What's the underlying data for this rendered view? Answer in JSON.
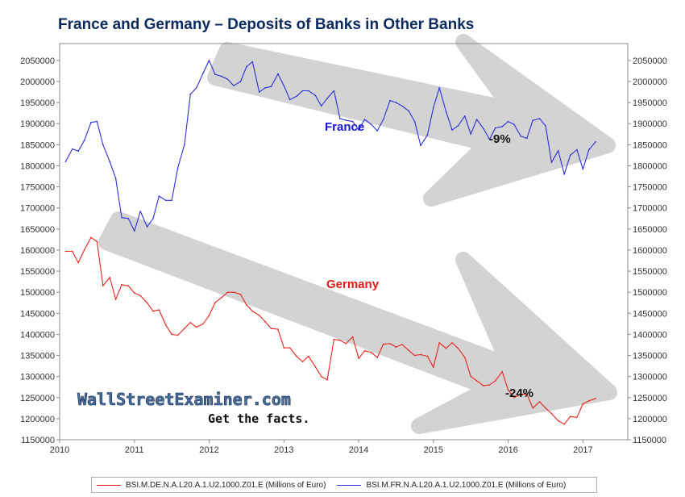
{
  "title": "France and Germany – Deposits of Banks in Other Banks",
  "chart_data": {
    "type": "line",
    "x_ticks": [
      "2010",
      "2011",
      "2012",
      "2013",
      "2014",
      "2015",
      "2016",
      "2017"
    ],
    "y_ticks": [
      1150000,
      1200000,
      1250000,
      1300000,
      1350000,
      1400000,
      1450000,
      1500000,
      1550000,
      1600000,
      1650000,
      1700000,
      1750000,
      1800000,
      1850000,
      1900000,
      1950000,
      2000000,
      2050000
    ],
    "xlim": [
      2010.0,
      2017.6
    ],
    "ylim": [
      1150000,
      2090000
    ],
    "grid": false,
    "legend_position": "bottom",
    "series": [
      {
        "name": "BSI.M.DE.N.A.L20.A.1.U2.1000.Z01.E (Millions of Euro)",
        "color": "#e8221b",
        "x": [
          2010.08,
          2010.17,
          2010.25,
          2010.33,
          2010.42,
          2010.5,
          2010.58,
          2010.67,
          2010.75,
          2010.83,
          2010.92,
          2011.0,
          2011.08,
          2011.17,
          2011.25,
          2011.33,
          2011.42,
          2011.5,
          2011.58,
          2011.67,
          2011.75,
          2011.83,
          2011.92,
          2012.0,
          2012.08,
          2012.17,
          2012.25,
          2012.33,
          2012.42,
          2012.5,
          2012.58,
          2012.67,
          2012.75,
          2012.83,
          2012.92,
          2013.0,
          2013.08,
          2013.17,
          2013.25,
          2013.33,
          2013.42,
          2013.5,
          2013.58,
          2013.67,
          2013.75,
          2013.83,
          2013.92,
          2014.0,
          2014.08,
          2014.17,
          2014.25,
          2014.33,
          2014.42,
          2014.5,
          2014.58,
          2014.67,
          2014.75,
          2014.83,
          2014.92,
          2015.0,
          2015.08,
          2015.17,
          2015.25,
          2015.33,
          2015.42,
          2015.5,
          2015.58,
          2015.67,
          2015.75,
          2015.83,
          2015.92,
          2016.0,
          2016.08,
          2016.17,
          2016.25,
          2016.33,
          2016.42,
          2016.5,
          2016.58,
          2016.67,
          2016.75,
          2016.83,
          2016.92,
          2017.0,
          2017.08,
          2017.17
        ],
        "y": [
          1597000,
          1597000,
          1570000,
          1600000,
          1630000,
          1620000,
          1515000,
          1535000,
          1483000,
          1518000,
          1515000,
          1498000,
          1492000,
          1475000,
          1455000,
          1458000,
          1422000,
          1400000,
          1398000,
          1414000,
          1428000,
          1417000,
          1425000,
          1445000,
          1475000,
          1488000,
          1500000,
          1500000,
          1495000,
          1470000,
          1455000,
          1445000,
          1430000,
          1414000,
          1412000,
          1368000,
          1368000,
          1348000,
          1335000,
          1348000,
          1323000,
          1300000,
          1292000,
          1388000,
          1386000,
          1378000,
          1394000,
          1343000,
          1361000,
          1357000,
          1345000,
          1377000,
          1378000,
          1370000,
          1376000,
          1362000,
          1350000,
          1352000,
          1348000,
          1322000,
          1380000,
          1367000,
          1380000,
          1367000,
          1345000,
          1300000,
          1290000,
          1278000,
          1280000,
          1290000,
          1312000,
          1268000,
          1250000,
          1258000,
          1258000,
          1225000,
          1240000,
          1225000,
          1212000,
          1195000,
          1187000,
          1205000,
          1203000,
          1235000,
          1242000,
          1248000
        ]
      },
      {
        "name": "BSI.M.FR.N.A.L20.A.1.U2.1000.Z01.E (Millions of Euro)",
        "color": "#2d2ddc",
        "x": [
          2010.08,
          2010.17,
          2010.25,
          2010.33,
          2010.42,
          2010.5,
          2010.58,
          2010.67,
          2010.75,
          2010.83,
          2010.92,
          2011.0,
          2011.08,
          2011.17,
          2011.25,
          2011.33,
          2011.42,
          2011.5,
          2011.58,
          2011.67,
          2011.75,
          2011.83,
          2011.92,
          2012.0,
          2012.08,
          2012.17,
          2012.25,
          2012.33,
          2012.42,
          2012.5,
          2012.58,
          2012.67,
          2012.75,
          2012.83,
          2012.92,
          2013.0,
          2013.08,
          2013.17,
          2013.25,
          2013.33,
          2013.42,
          2013.5,
          2013.58,
          2013.67,
          2013.75,
          2013.83,
          2013.92,
          2014.0,
          2014.08,
          2014.17,
          2014.25,
          2014.33,
          2014.42,
          2014.5,
          2014.58,
          2014.67,
          2014.75,
          2014.83,
          2014.92,
          2015.0,
          2015.08,
          2015.17,
          2015.25,
          2015.33,
          2015.42,
          2015.5,
          2015.58,
          2015.67,
          2015.75,
          2015.83,
          2015.92,
          2016.0,
          2016.08,
          2016.17,
          2016.25,
          2016.33,
          2016.42,
          2016.5,
          2016.58,
          2016.67,
          2016.75,
          2016.83,
          2016.92,
          2017.0,
          2017.08,
          2017.17
        ],
        "y": [
          1810000,
          1840000,
          1835000,
          1860000,
          1903000,
          1905000,
          1850000,
          1810000,
          1770000,
          1677000,
          1675000,
          1645000,
          1692000,
          1655000,
          1675000,
          1728000,
          1718000,
          1718000,
          1795000,
          1850000,
          1970000,
          1985000,
          2020000,
          2050000,
          2017000,
          2012000,
          2005000,
          1990000,
          2000000,
          2035000,
          2047000,
          1975000,
          1985000,
          1988000,
          2018000,
          1990000,
          1957000,
          1965000,
          1978000,
          1978000,
          1967000,
          1942000,
          1960000,
          1978000,
          1912000,
          1908000,
          1905000,
          1885000,
          1910000,
          1898000,
          1883000,
          1910000,
          1955000,
          1950000,
          1942000,
          1930000,
          1905000,
          1848000,
          1873000,
          1938000,
          1985000,
          1928000,
          1885000,
          1895000,
          1918000,
          1875000,
          1910000,
          1888000,
          1863000,
          1890000,
          1893000,
          1905000,
          1898000,
          1870000,
          1865000,
          1908000,
          1912000,
          1895000,
          1808000,
          1836000,
          1780000,
          1825000,
          1838000,
          1792000,
          1838000,
          1857000
        ]
      }
    ],
    "annotations": {
      "france_label": "France",
      "germany_label": "Germany",
      "france_change": "-9%",
      "germany_change": "-24%"
    }
  },
  "watermark": {
    "brand": "WallStreetExaminer.com",
    "tagline": "Get the facts."
  },
  "colors": {
    "title": "#0c2a5e",
    "arrow_fill": "#d3d3d3",
    "france_label": "#1414d2",
    "germany_label": "#e21a1a"
  }
}
